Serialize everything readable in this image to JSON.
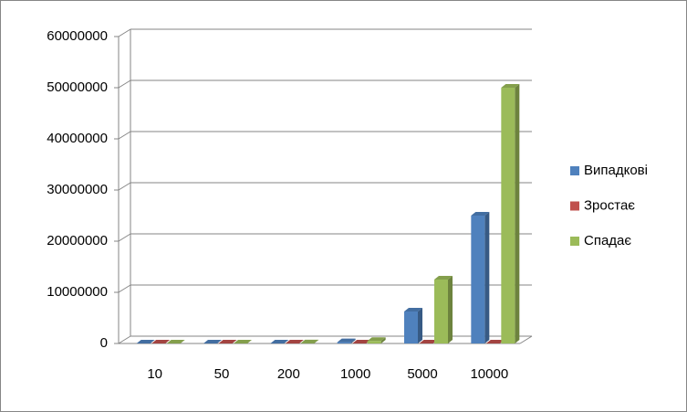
{
  "chart_data": {
    "type": "bar3d",
    "categories": [
      "10",
      "50",
      "200",
      "1000",
      "5000",
      "10000"
    ],
    "series": [
      {
        "name": "Випадкові",
        "color": "#4f81bd",
        "values": [
          25,
          625,
          10000,
          250000,
          6250000,
          25000000
        ]
      },
      {
        "name": "Зростає",
        "color": "#c0504d",
        "values": [
          0,
          0,
          0,
          0,
          0,
          0
        ]
      },
      {
        "name": "Спадає",
        "color": "#9bbb59",
        "values": [
          50,
          1250,
          20000,
          500000,
          12500000,
          50000000
        ]
      }
    ],
    "ylim": [
      0,
      60000000
    ],
    "yticks": [
      0,
      10000000,
      20000000,
      30000000,
      40000000,
      50000000,
      60000000
    ],
    "grid": true,
    "legend": "right"
  }
}
